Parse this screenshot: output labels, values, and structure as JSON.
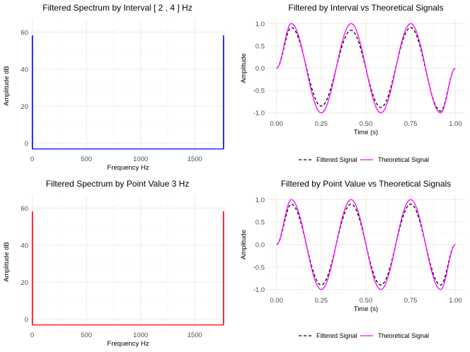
{
  "chart_data": [
    {
      "type": "line",
      "title": "Filtered Spectrum by Interval [ 2 , 4 ] Hz",
      "xlabel": "Frequency Hz",
      "ylabel": "Amplitude dB",
      "xlim": [
        -10,
        1780
      ],
      "ylim": [
        -5,
        67
      ],
      "x_ticks": [
        0,
        500,
        1000,
        1500
      ],
      "x_tick_labels": [
        "0",
        "500",
        "1000",
        "1500"
      ],
      "y_ticks": [
        0,
        20,
        40,
        60
      ],
      "y_tick_labels": [
        "0",
        "20",
        "40",
        "60"
      ],
      "grid": true,
      "series": [
        {
          "color": "#0000ff",
          "x": [
            0,
            0,
            3,
            3,
            1764,
            1764,
            1767,
            1767
          ],
          "y": [
            -3,
            58,
            58,
            -3,
            -3,
            58,
            58,
            -3
          ]
        }
      ]
    },
    {
      "type": "line",
      "title": "Filtered by Interval vs Theoretical Signals",
      "xlabel": "Time (s)",
      "ylabel": "Amplitude",
      "xlim": [
        -0.05,
        1.05
      ],
      "ylim": [
        -1.1,
        1.1
      ],
      "x_ticks": [
        0,
        0.25,
        0.5,
        0.75,
        1.0
      ],
      "x_tick_labels": [
        "0.00",
        "0.25",
        "0.50",
        "0.75",
        "1.00"
      ],
      "y_ticks": [
        -1,
        -0.5,
        0,
        0.5,
        1
      ],
      "y_tick_labels": [
        "-1.0",
        "-0.5",
        "0.0",
        "0.5",
        "1.0"
      ],
      "grid": true,
      "legend": "bottom",
      "series": [
        {
          "name": "Filtered Signal",
          "color": "#000000",
          "dash": true,
          "x": [
            0,
            0.083,
            0.25,
            0.417,
            0.583,
            0.75,
            0.917,
            1.0
          ],
          "y": [
            0,
            0.91,
            -0.85,
            0.85,
            -0.88,
            0.91,
            -0.96,
            0
          ]
        },
        {
          "name": "Theoretical Signal",
          "color": "#ff00ff",
          "dash": false,
          "x": [
            0,
            0.083,
            0.25,
            0.417,
            0.583,
            0.75,
            0.917,
            1.0
          ],
          "y": [
            0,
            1,
            -1,
            1,
            -1,
            1,
            -1,
            0
          ]
        }
      ]
    },
    {
      "type": "line",
      "title": "Filtered Spectrum by Point Value  3 Hz",
      "xlabel": "Frequency Hz",
      "ylabel": "Amplitude dB",
      "xlim": [
        -10,
        1780
      ],
      "ylim": [
        -5,
        67
      ],
      "x_ticks": [
        0,
        500,
        1000,
        1500
      ],
      "x_tick_labels": [
        "0",
        "500",
        "1000",
        "1500"
      ],
      "y_ticks": [
        0,
        20,
        40,
        60
      ],
      "y_tick_labels": [
        "0",
        "20",
        "40",
        "60"
      ],
      "grid": true,
      "series": [
        {
          "color": "#ff0000",
          "x": [
            0,
            0,
            3,
            3,
            1764,
            1764,
            1767,
            1767
          ],
          "y": [
            -3,
            58,
            58,
            -3,
            -3,
            58,
            58,
            -3
          ]
        }
      ]
    },
    {
      "type": "line",
      "title": "Filtered by Point Value vs Theoretical Signals",
      "xlabel": "Time (s)",
      "ylabel": "Amplitude",
      "xlim": [
        -0.05,
        1.05
      ],
      "ylim": [
        -1.1,
        1.1
      ],
      "x_ticks": [
        0,
        0.25,
        0.5,
        0.75,
        1.0
      ],
      "x_tick_labels": [
        "0.00",
        "0.25",
        "0.50",
        "0.75",
        "1.00"
      ],
      "y_ticks": [
        -1,
        -0.5,
        0,
        0.5,
        1
      ],
      "y_tick_labels": [
        "-1.0",
        "-0.5",
        "0.0",
        "0.5",
        "1.0"
      ],
      "grid": true,
      "legend": "bottom",
      "series": [
        {
          "name": "Filtered Signal",
          "color": "#000000",
          "dash": true,
          "x": [
            0,
            0.083,
            0.25,
            0.417,
            0.583,
            0.75,
            0.917,
            1.0
          ],
          "y": [
            0,
            0.9,
            -0.9,
            0.9,
            -0.9,
            0.9,
            -0.9,
            0
          ]
        },
        {
          "name": "Theoretical Signal",
          "color": "#ff00ff",
          "dash": false,
          "x": [
            0,
            0.083,
            0.25,
            0.417,
            0.583,
            0.75,
            0.917,
            1.0
          ],
          "y": [
            0,
            1,
            -1,
            1,
            -1,
            1,
            -1,
            0
          ]
        }
      ]
    }
  ]
}
